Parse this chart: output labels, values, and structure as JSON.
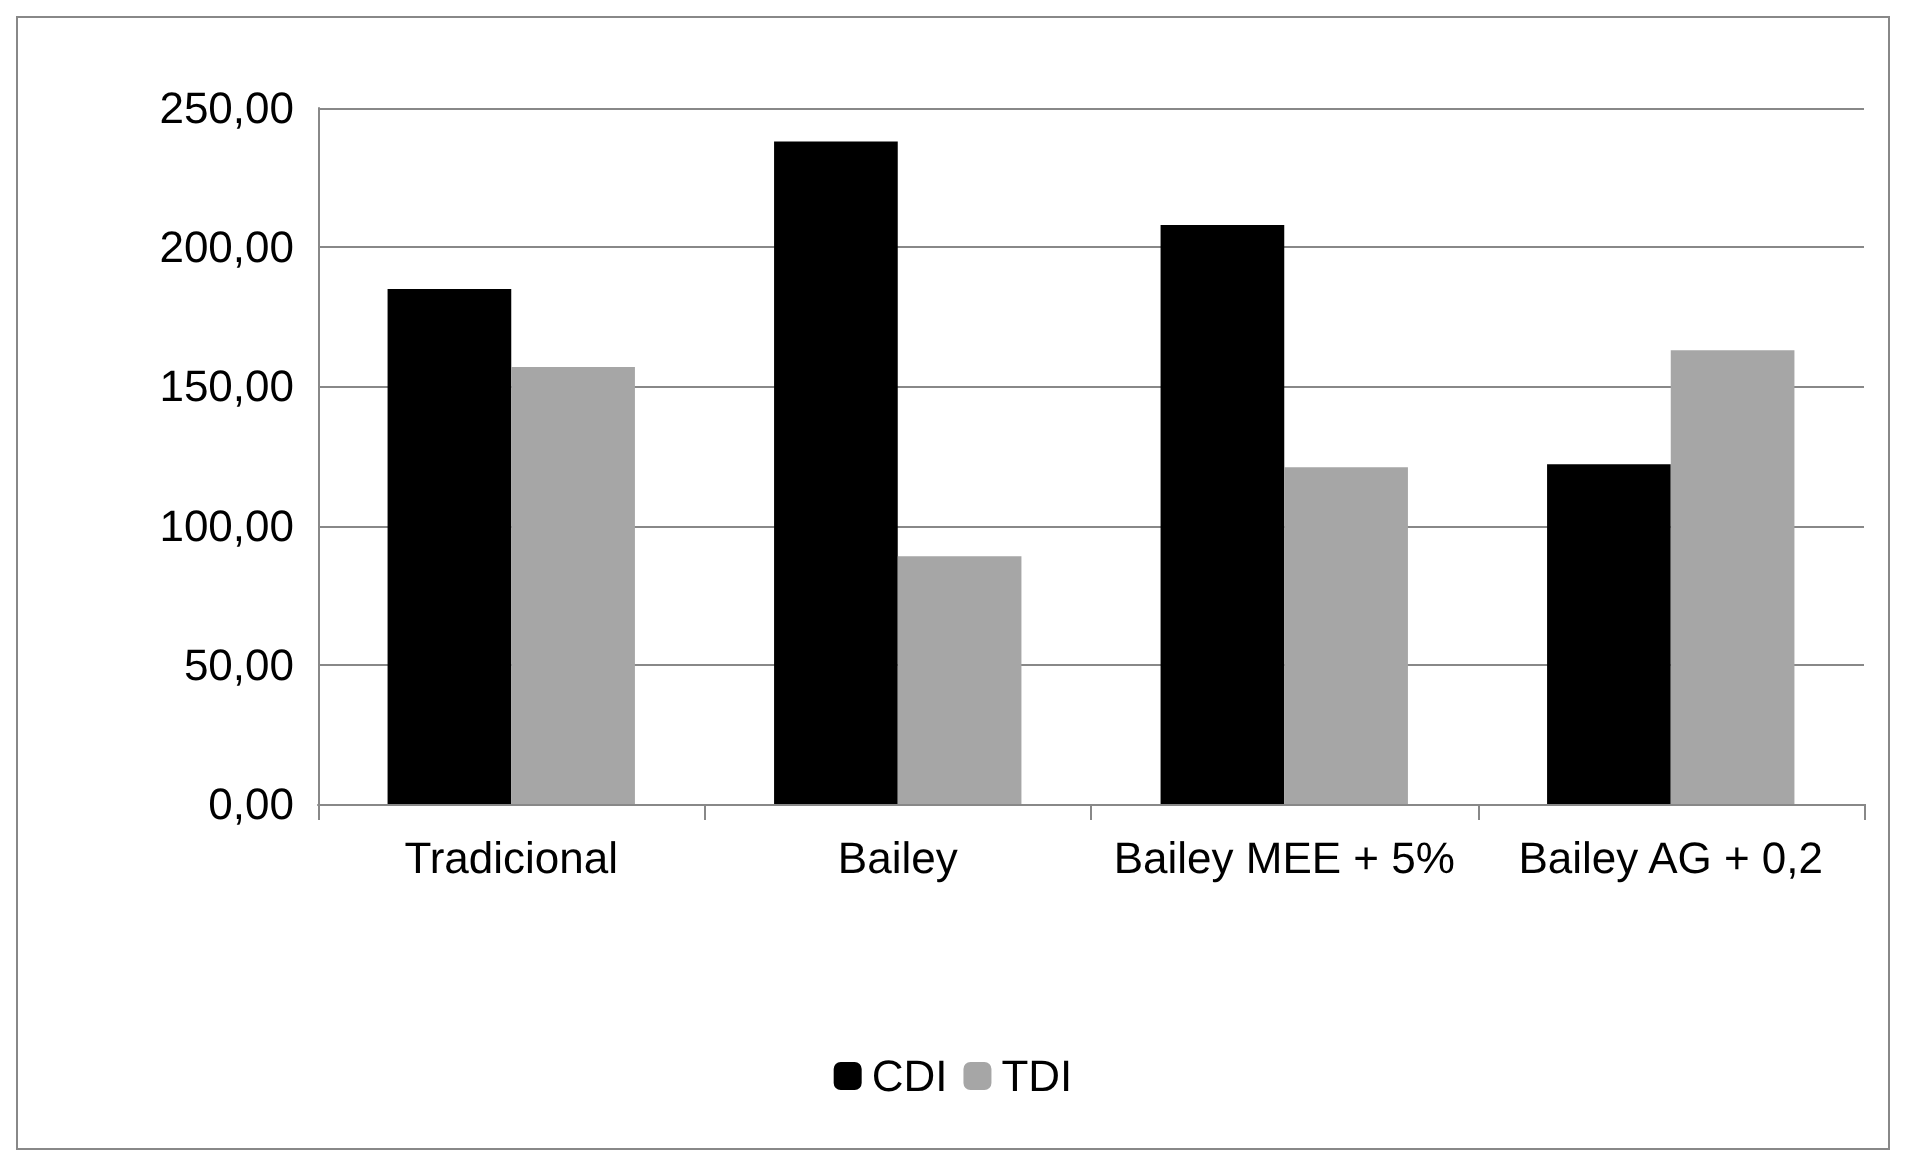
{
  "chart_data": {
    "type": "bar",
    "categories": [
      "Tradicional",
      "Bailey",
      "Bailey MEE + 5%",
      "Bailey AG + 0,2"
    ],
    "series": [
      {
        "name": "CDI",
        "color": "#000000",
        "values": [
          185,
          238,
          208,
          122
        ]
      },
      {
        "name": "TDI",
        "color": "#a6a6a6",
        "values": [
          157,
          89,
          121,
          163
        ]
      }
    ],
    "ylim": [
      0,
      250
    ],
    "yticks": [
      {
        "value": 0,
        "label": "0,00"
      },
      {
        "value": 50,
        "label": "50,00"
      },
      {
        "value": 100,
        "label": "100,00"
      },
      {
        "value": 150,
        "label": "150,00"
      },
      {
        "value": 200,
        "label": "200,00"
      },
      {
        "value": 250,
        "label": "250,00"
      }
    ],
    "grid": "y",
    "legend": "bottom"
  }
}
